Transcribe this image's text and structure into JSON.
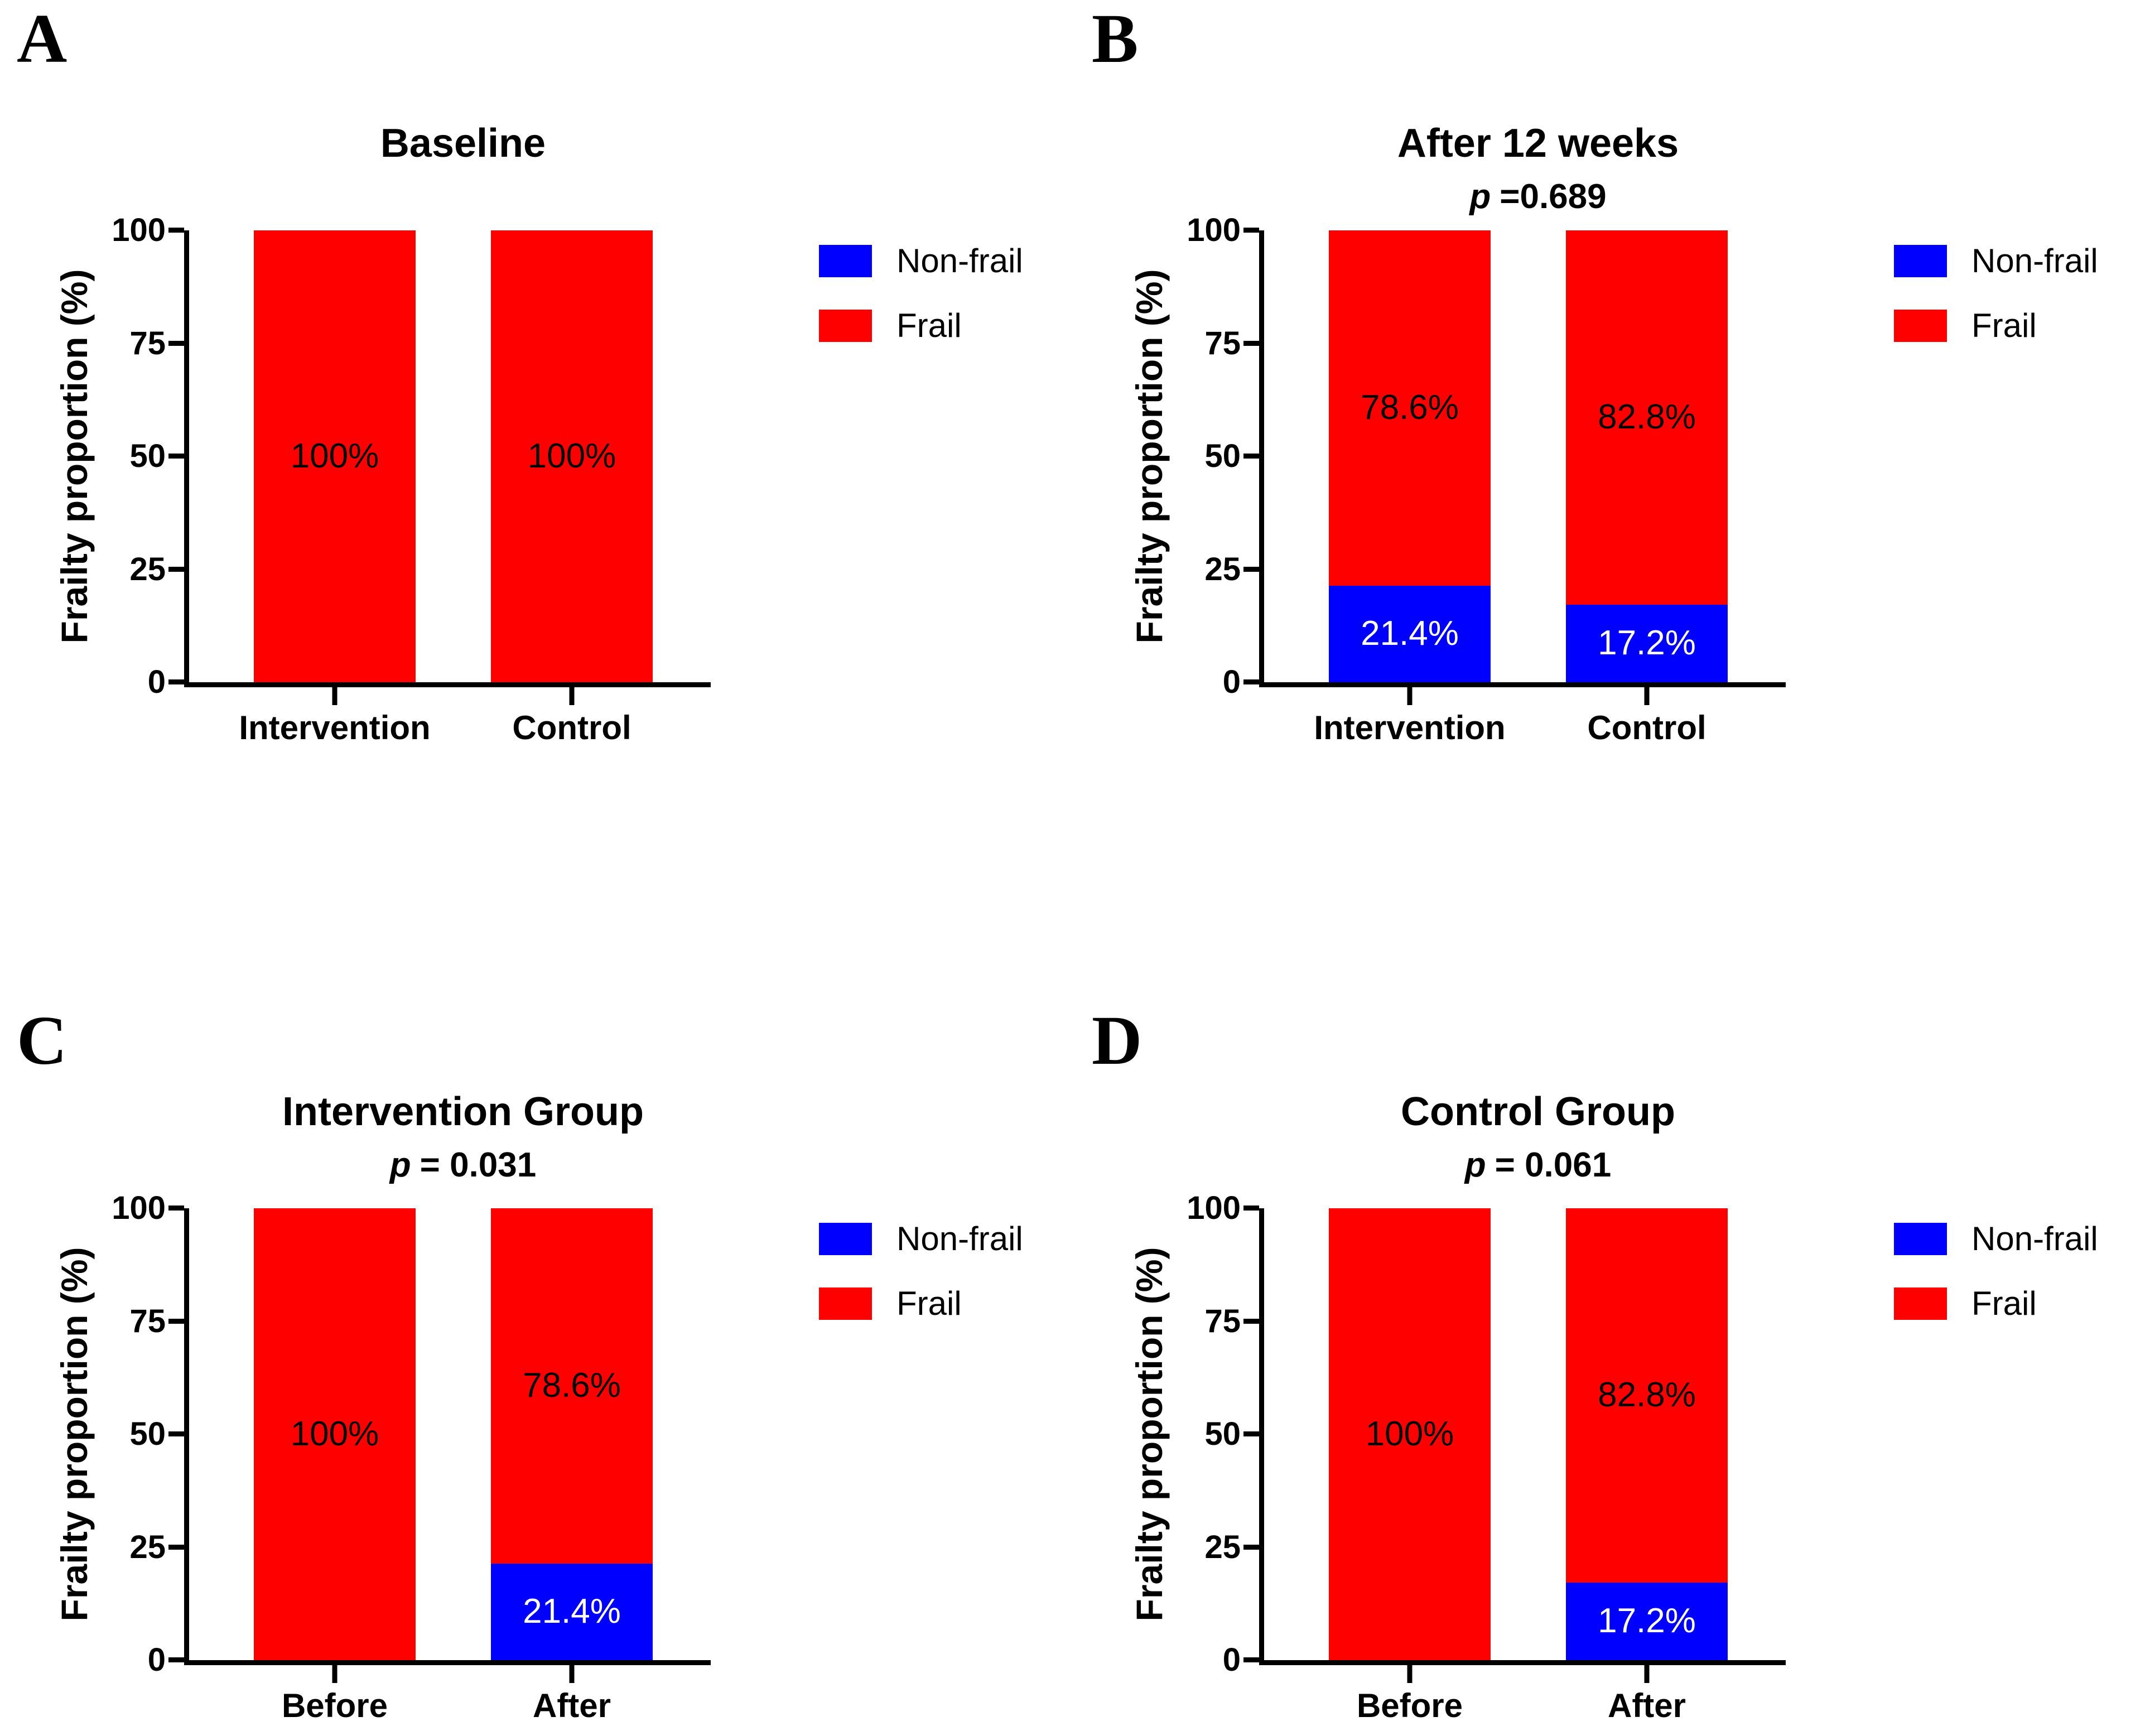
{
  "legend": {
    "items": [
      {
        "label": "Non-frail",
        "color": "#0000FF"
      },
      {
        "label": "Frail",
        "color": "#FF0000"
      }
    ],
    "position": "right"
  },
  "axis_style": {
    "color": "#000000",
    "ylabel": "Frailty proportion (%)",
    "ylim": [
      0,
      100
    ],
    "yticks": [
      0,
      25,
      50,
      75,
      100
    ],
    "grid": false
  },
  "chart_data": [
    {
      "panel_letter": "A",
      "type": "bar",
      "stacked": true,
      "title": "Baseline",
      "p_symbol": "",
      "p_rest": "",
      "ylabel": "Frailty proportion (%)",
      "ylim": [
        0,
        100
      ],
      "yticks": [
        0,
        25,
        50,
        75,
        100
      ],
      "categories": [
        "Intervention",
        "Control"
      ],
      "series": [
        {
          "name": "Non-frail",
          "color": "#0000FF",
          "label_color": "#FFFFFF",
          "values": [
            0,
            0
          ],
          "labels": [
            "",
            ""
          ]
        },
        {
          "name": "Frail",
          "color": "#FF0000",
          "label_color": "#000000",
          "values": [
            100,
            100
          ],
          "labels": [
            "100%",
            "100%"
          ]
        }
      ],
      "legend_position": "right",
      "grid": false
    },
    {
      "panel_letter": "B",
      "type": "bar",
      "stacked": true,
      "title": "After 12 weeks",
      "p_symbol": "p",
      "p_rest": "=0.689",
      "ylabel": "Frailty proportion (%)",
      "ylim": [
        0,
        100
      ],
      "yticks": [
        0,
        25,
        50,
        75,
        100
      ],
      "categories": [
        "Intervention",
        "Control"
      ],
      "series": [
        {
          "name": "Non-frail",
          "color": "#0000FF",
          "label_color": "#FFFFFF",
          "values": [
            21.4,
            17.2
          ],
          "labels": [
            "21.4%",
            "17.2%"
          ]
        },
        {
          "name": "Frail",
          "color": "#FF0000",
          "label_color": "#000000",
          "values": [
            78.6,
            82.8
          ],
          "labels": [
            "78.6%",
            "82.8%"
          ]
        }
      ],
      "legend_position": "right",
      "grid": false
    },
    {
      "panel_letter": "C",
      "type": "bar",
      "stacked": true,
      "title": "Intervention Group",
      "p_symbol": "p",
      "p_rest": "= 0.031",
      "ylabel": "Frailty proportion (%)",
      "ylim": [
        0,
        100
      ],
      "yticks": [
        0,
        25,
        50,
        75,
        100
      ],
      "categories": [
        "Before",
        "After"
      ],
      "series": [
        {
          "name": "Non-frail",
          "color": "#0000FF",
          "label_color": "#FFFFFF",
          "values": [
            0,
            21.4
          ],
          "labels": [
            "",
            "21.4%"
          ]
        },
        {
          "name": "Frail",
          "color": "#FF0000",
          "label_color": "#000000",
          "values": [
            100,
            78.6
          ],
          "labels": [
            "100%",
            "78.6%"
          ]
        }
      ],
      "legend_position": "right",
      "grid": false
    },
    {
      "panel_letter": "D",
      "type": "bar",
      "stacked": true,
      "title": "Control Group",
      "p_symbol": "p",
      "p_rest": "= 0.061",
      "ylabel": "Frailty proportion (%)",
      "ylim": [
        0,
        100
      ],
      "yticks": [
        0,
        25,
        50,
        75,
        100
      ],
      "categories": [
        "Before",
        "After"
      ],
      "series": [
        {
          "name": "Non-frail",
          "color": "#0000FF",
          "label_color": "#FFFFFF",
          "values": [
            0,
            17.2
          ],
          "labels": [
            "",
            "17.2%"
          ]
        },
        {
          "name": "Frail",
          "color": "#FF0000",
          "label_color": "#000000",
          "values": [
            100,
            82.8
          ],
          "labels": [
            "100%",
            "82.8%"
          ]
        }
      ],
      "legend_position": "right",
      "grid": false
    }
  ]
}
